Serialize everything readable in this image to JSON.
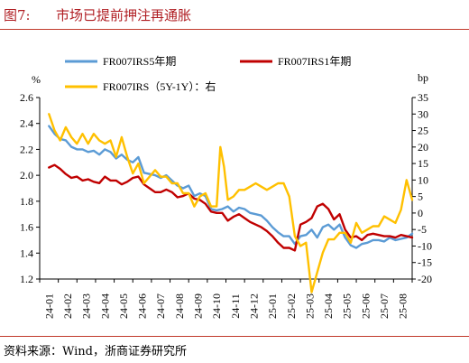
{
  "figure": {
    "label": "图7:",
    "title": "市场已提前押注再通胀",
    "source": "资料来源：Wind，浙商证券研究所"
  },
  "colors": {
    "accent": "#b01e23",
    "series_5y": "#5b9bd5",
    "series_1y": "#c00000",
    "series_spread": "#ffc000"
  },
  "chart_data": {
    "type": "line",
    "title": "",
    "y_left_unit": "%",
    "y_right_unit": "bp",
    "ylim_left": [
      1.2,
      2.6
    ],
    "yticks_left": [
      "1.2",
      "1.4",
      "1.6",
      "1.8",
      "2.0",
      "2.2",
      "2.4",
      "2.6"
    ],
    "ylim_right": [
      -20,
      35
    ],
    "yticks_right": [
      "35",
      "30",
      "25",
      "20",
      "15",
      "10",
      "5",
      "0",
      "-5",
      "-10",
      "-15",
      "-20"
    ],
    "x_categories": [
      "24-01",
      "24-02",
      "24-03",
      "24-04",
      "24-05",
      "24-06",
      "24-07",
      "24-08",
      "24-09",
      "24-10",
      "24-11",
      "24-12",
      "25-01",
      "25-02",
      "25-03",
      "25-04",
      "25-05",
      "25-06",
      "25-07",
      "25-08"
    ],
    "grid": false,
    "legend_position": "top",
    "series": [
      {
        "name": "FR007IRS5年期",
        "axis": "left",
        "x": [
          0,
          0.3,
          0.6,
          0.9,
          1.2,
          1.5,
          1.8,
          2.1,
          2.4,
          2.7,
          3.0,
          3.3,
          3.6,
          3.9,
          4.2,
          4.5,
          4.8,
          5.1,
          5.4,
          5.7,
          6.0,
          6.3,
          6.6,
          6.9,
          7.2,
          7.5,
          7.8,
          8.1,
          8.4,
          8.7,
          9.0,
          9.3,
          9.6,
          9.9,
          10.2,
          10.5,
          10.8,
          11.1,
          11.4,
          11.7,
          12.0,
          12.3,
          12.6,
          12.9,
          13.2,
          13.5,
          13.8,
          14.1,
          14.4,
          14.7,
          15.0,
          15.3,
          15.6,
          15.9,
          16.2,
          16.5,
          16.8,
          17.1,
          17.4,
          17.7,
          18.0,
          18.3,
          18.6,
          18.9,
          19.2,
          19.5
        ],
        "values": [
          2.38,
          2.32,
          2.28,
          2.27,
          2.22,
          2.2,
          2.2,
          2.18,
          2.19,
          2.16,
          2.2,
          2.18,
          2.13,
          2.16,
          2.12,
          2.1,
          2.14,
          2.02,
          2.01,
          2.0,
          1.98,
          2.0,
          1.96,
          1.92,
          1.9,
          1.92,
          1.84,
          1.86,
          1.84,
          1.74,
          1.73,
          1.74,
          1.76,
          1.72,
          1.75,
          1.74,
          1.71,
          1.7,
          1.69,
          1.65,
          1.6,
          1.56,
          1.53,
          1.53,
          1.47,
          1.53,
          1.54,
          1.58,
          1.52,
          1.6,
          1.62,
          1.58,
          1.62,
          1.52,
          1.46,
          1.44,
          1.47,
          1.48,
          1.5,
          1.5,
          1.49,
          1.52,
          1.5,
          1.51,
          1.52,
          1.55
        ]
      },
      {
        "name": "FR007IRS1年期",
        "axis": "left",
        "x": [
          0,
          0.3,
          0.6,
          0.9,
          1.2,
          1.5,
          1.8,
          2.1,
          2.4,
          2.7,
          3.0,
          3.3,
          3.6,
          3.9,
          4.2,
          4.5,
          4.8,
          5.1,
          5.4,
          5.7,
          6.0,
          6.3,
          6.6,
          6.9,
          7.2,
          7.5,
          7.8,
          8.1,
          8.4,
          8.7,
          9.0,
          9.3,
          9.6,
          9.9,
          10.2,
          10.5,
          10.8,
          11.1,
          11.4,
          11.7,
          12.0,
          12.3,
          12.6,
          12.9,
          13.2,
          13.5,
          13.8,
          14.1,
          14.4,
          14.7,
          15.0,
          15.3,
          15.6,
          15.9,
          16.2,
          16.5,
          16.8,
          17.1,
          17.4,
          17.7,
          18.0,
          18.3,
          18.6,
          18.9,
          19.2,
          19.5
        ],
        "values": [
          2.06,
          2.08,
          2.05,
          2.01,
          1.98,
          1.99,
          1.96,
          1.97,
          1.95,
          1.94,
          1.99,
          1.96,
          1.96,
          1.93,
          1.95,
          1.98,
          1.99,
          1.93,
          1.9,
          1.87,
          1.87,
          1.89,
          1.87,
          1.83,
          1.84,
          1.86,
          1.82,
          1.81,
          1.78,
          1.72,
          1.71,
          1.71,
          1.65,
          1.68,
          1.7,
          1.67,
          1.64,
          1.62,
          1.6,
          1.57,
          1.53,
          1.48,
          1.44,
          1.44,
          1.42,
          1.62,
          1.64,
          1.67,
          1.76,
          1.78,
          1.74,
          1.66,
          1.7,
          1.58,
          1.52,
          1.53,
          1.5,
          1.54,
          1.55,
          1.54,
          1.53,
          1.53,
          1.52,
          1.54,
          1.53,
          1.52
        ]
      },
      {
        "name": "FR007IRS（5Y-1Y）：右",
        "axis": "right",
        "x": [
          0,
          0.3,
          0.6,
          0.9,
          1.2,
          1.5,
          1.8,
          2.1,
          2.4,
          2.7,
          3.0,
          3.3,
          3.6,
          3.9,
          4.2,
          4.5,
          4.8,
          5.1,
          5.4,
          5.7,
          6.0,
          6.3,
          6.6,
          6.9,
          7.2,
          7.5,
          7.8,
          8.1,
          8.4,
          8.7,
          9.0,
          9.2,
          9.4,
          9.6,
          9.9,
          10.2,
          10.5,
          10.8,
          11.1,
          11.4,
          11.7,
          12.0,
          12.3,
          12.6,
          12.9,
          13.2,
          13.5,
          13.8,
          14.1,
          14.4,
          14.7,
          15.0,
          15.3,
          15.6,
          15.9,
          16.2,
          16.5,
          16.8,
          17.1,
          17.4,
          17.7,
          18.0,
          18.3,
          18.6,
          18.9,
          19.2,
          19.5
        ],
        "values": [
          30,
          25,
          22,
          26,
          23,
          21,
          24,
          21,
          24,
          22,
          21,
          22,
          17,
          23,
          17,
          12,
          15,
          9,
          11,
          13,
          11,
          11,
          9,
          9,
          6,
          6,
          2,
          5,
          6,
          2,
          2,
          20,
          14,
          4,
          5,
          7,
          7,
          8,
          9,
          8,
          7,
          8,
          9,
          9,
          5,
          -7,
          -10,
          -9,
          -24,
          -18,
          -12,
          -8,
          -8,
          -6,
          -6,
          -9,
          -3,
          -6,
          -5,
          -4,
          -4,
          -1,
          -2,
          -3,
          1,
          10,
          4
        ]
      }
    ]
  }
}
